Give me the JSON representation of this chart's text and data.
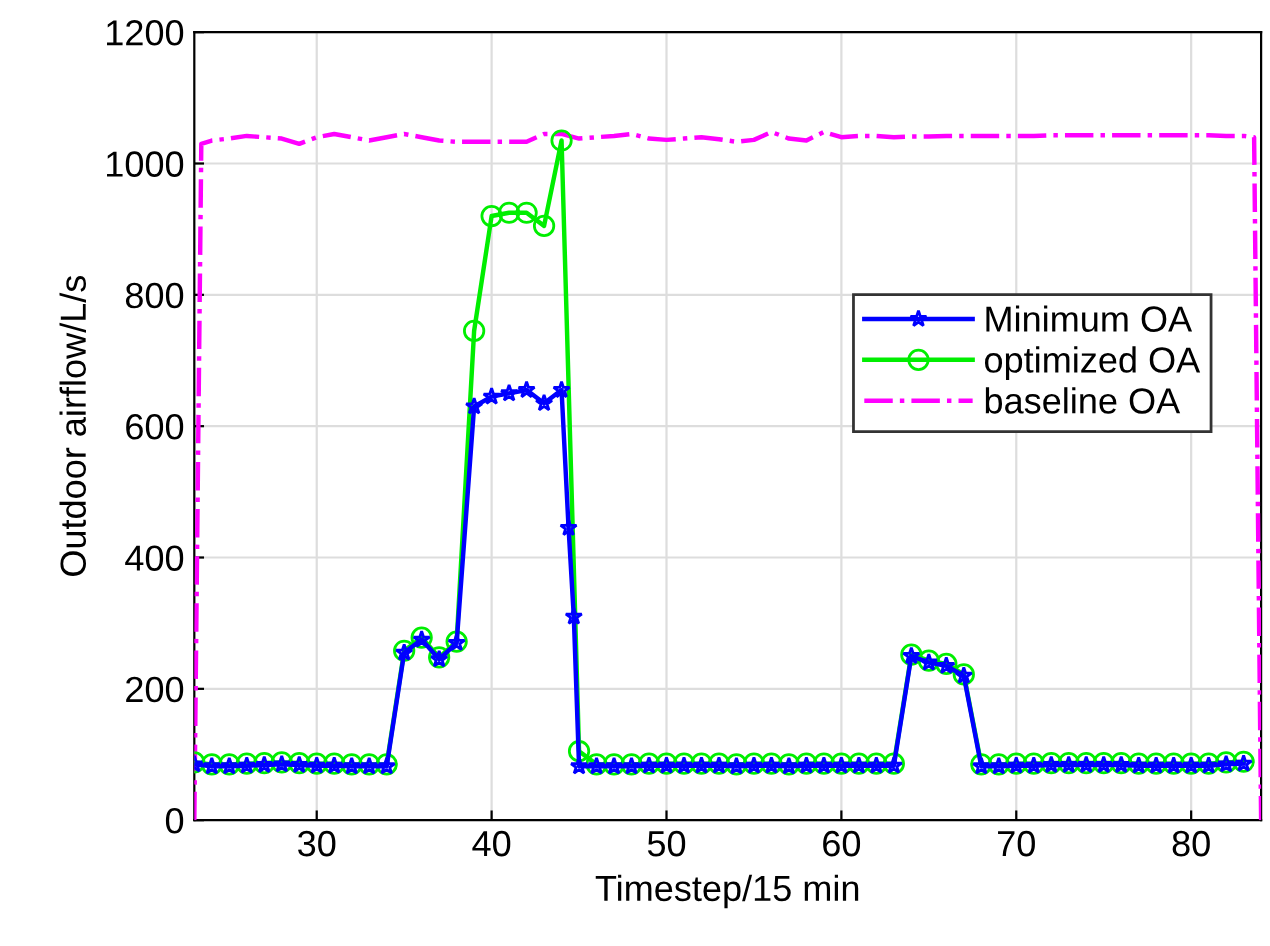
{
  "chart_data": {
    "type": "line",
    "xlabel": "Timestep/15 min",
    "ylabel": "Outdoor airflow/L/s",
    "xlim": [
      23,
      84
    ],
    "ylim": [
      0,
      1200
    ],
    "xticks": [
      30,
      40,
      50,
      60,
      70,
      80
    ],
    "yticks": [
      0,
      200,
      400,
      600,
      800,
      1000,
      1200
    ],
    "grid": true,
    "legend": "right",
    "series": [
      {
        "name": "Minimum OA",
        "color": "#0000ff",
        "marker": "star",
        "line_style": "solid",
        "x": [
          23,
          24,
          25,
          26,
          27,
          28,
          29,
          30,
          31,
          32,
          33,
          34,
          35,
          36,
          37,
          38,
          39,
          40,
          41,
          42,
          43,
          44,
          44.4,
          44.7,
          45,
          46,
          47,
          48,
          49,
          50,
          51,
          52,
          53,
          54,
          55,
          56,
          57,
          58,
          59,
          60,
          61,
          62,
          63,
          64,
          65,
          66,
          67,
          68,
          69,
          70,
          71,
          72,
          73,
          74,
          75,
          76,
          77,
          78,
          79,
          80,
          81,
          82,
          83
        ],
        "values": [
          85,
          82,
          82,
          83,
          84,
          85,
          84,
          83,
          83,
          82,
          82,
          82,
          255,
          275,
          245,
          270,
          630,
          645,
          650,
          655,
          635,
          655,
          445,
          310,
          82,
          82,
          82,
          82,
          83,
          83,
          83,
          83,
          83,
          82,
          83,
          83,
          82,
          83,
          83,
          83,
          83,
          83,
          83,
          250,
          240,
          235,
          220,
          82,
          82,
          83,
          83,
          84,
          84,
          84,
          84,
          84,
          83,
          83,
          83,
          83,
          83,
          85,
          86
        ]
      },
      {
        "name": "optimized OA",
        "color": "#00ee00",
        "marker": "circle",
        "line_style": "solid",
        "x": [
          23,
          24,
          25,
          26,
          27,
          28,
          29,
          30,
          31,
          32,
          33,
          34,
          35,
          36,
          37,
          38,
          39,
          40,
          41,
          42,
          43,
          44,
          45,
          46,
          47,
          48,
          49,
          50,
          51,
          52,
          53,
          54,
          55,
          56,
          57,
          58,
          59,
          60,
          61,
          62,
          63,
          64,
          65,
          66,
          67,
          68,
          69,
          70,
          71,
          72,
          73,
          74,
          75,
          76,
          77,
          78,
          79,
          80,
          81,
          82,
          83
        ],
        "values": [
          88,
          85,
          85,
          86,
          87,
          88,
          87,
          86,
          86,
          85,
          85,
          85,
          258,
          278,
          248,
          272,
          745,
          920,
          925,
          925,
          905,
          1035,
          105,
          85,
          85,
          85,
          86,
          86,
          86,
          86,
          86,
          85,
          86,
          86,
          85,
          86,
          86,
          86,
          86,
          86,
          86,
          252,
          243,
          238,
          222,
          85,
          85,
          86,
          86,
          87,
          87,
          87,
          87,
          87,
          86,
          86,
          86,
          86,
          86,
          88,
          89
        ]
      },
      {
        "name": "baseline OA",
        "color": "#ff00ff",
        "marker": "none",
        "line_style": "dashdot",
        "x": [
          23,
          23.4,
          24,
          25,
          26,
          27,
          28,
          29,
          30,
          31,
          32,
          33,
          34,
          35,
          36,
          37,
          38,
          39,
          40,
          41,
          42,
          43,
          44,
          45,
          46,
          47,
          48,
          49,
          50,
          51,
          52,
          53,
          54,
          55,
          56,
          57,
          58,
          59,
          60,
          61,
          62,
          63,
          64,
          65,
          66,
          67,
          68,
          69,
          70,
          71,
          72,
          73,
          74,
          75,
          76,
          77,
          78,
          79,
          80,
          81,
          82,
          83,
          83.6,
          84
        ],
        "values": [
          0,
          1030,
          1035,
          1038,
          1042,
          1040,
          1038,
          1030,
          1040,
          1045,
          1040,
          1035,
          1040,
          1045,
          1040,
          1035,
          1033,
          1033,
          1033,
          1033,
          1033,
          1045,
          1045,
          1038,
          1040,
          1042,
          1045,
          1038,
          1036,
          1038,
          1040,
          1037,
          1033,
          1036,
          1048,
          1038,
          1035,
          1048,
          1040,
          1042,
          1042,
          1040,
          1041,
          1041,
          1042,
          1042,
          1042,
          1042,
          1042,
          1042,
          1043,
          1043,
          1043,
          1043,
          1043,
          1043,
          1043,
          1043,
          1043,
          1043,
          1042,
          1042,
          1040,
          0
        ]
      }
    ]
  }
}
